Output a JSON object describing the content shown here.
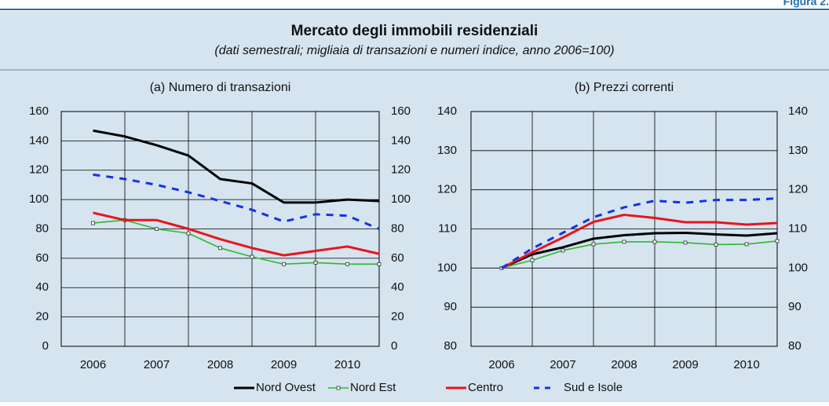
{
  "figure_label": "Figura 2.",
  "title": "Mercato degli immobili residenziali",
  "subtitle": "(dati semestrali; migliaia di transazioni e numeri indice, anno 2006=100)",
  "chart_data": [
    {
      "type": "line",
      "title": "(a) Numero di transazioni",
      "categories": [
        "2006",
        null,
        "2007",
        null,
        "2008",
        null,
        "2009",
        null,
        "2010",
        null
      ],
      "ylim": [
        0,
        160
      ],
      "yticks": [
        0,
        20,
        40,
        60,
        80,
        100,
        120,
        140,
        160
      ],
      "y2lim": [
        0,
        160
      ],
      "y2ticks": [
        0,
        20,
        40,
        60,
        80,
        100,
        120,
        140,
        160
      ],
      "grid": true,
      "series": [
        {
          "name": "Nord Ovest",
          "color": "#000000",
          "values": [
            147,
            143,
            137,
            130,
            114,
            111,
            98,
            98,
            100,
            99
          ]
        },
        {
          "name": "Nord Est",
          "color": "#2db82d",
          "marker": "square",
          "values": [
            84,
            86,
            80,
            77,
            67,
            61,
            56,
            57,
            56,
            56
          ]
        },
        {
          "name": "Centro",
          "color": "#e8141c",
          "values": [
            91,
            86,
            86,
            80,
            73,
            67,
            62,
            65,
            68,
            63
          ]
        },
        {
          "name": "Sud e Isole",
          "color": "#1432e6",
          "dashed": true,
          "values": [
            117,
            114,
            110,
            105,
            99,
            93,
            85,
            90,
            89,
            80
          ]
        }
      ]
    },
    {
      "type": "line",
      "title": "(b) Prezzi correnti",
      "categories": [
        "2006",
        null,
        "2007",
        null,
        "2008",
        null,
        "2009",
        null,
        "2010",
        null
      ],
      "ylim": [
        80,
        140
      ],
      "yticks": [
        80,
        90,
        100,
        110,
        120,
        130,
        140
      ],
      "y2lim": [
        80,
        140
      ],
      "y2ticks": [
        80,
        90,
        100,
        110,
        120,
        130,
        140
      ],
      "grid": true,
      "series": [
        {
          "name": "Nord Ovest",
          "color": "#000000",
          "values": [
            100,
            103.5,
            105.3,
            107.5,
            108.4,
            108.9,
            109,
            108.6,
            108.3,
            108.9
          ]
        },
        {
          "name": "Nord Est",
          "color": "#2db82d",
          "marker": "square",
          "values": [
            100,
            102,
            104.5,
            106.1,
            106.7,
            106.7,
            106.5,
            106,
            106.1,
            106.9
          ]
        },
        {
          "name": "Centro",
          "color": "#e8141c",
          "values": [
            100,
            104,
            107.8,
            111.8,
            113.6,
            112.8,
            111.7,
            111.7,
            111.1,
            111.5
          ]
        },
        {
          "name": "Sud e Isole",
          "color": "#1432e6",
          "dashed": true,
          "values": [
            100,
            105,
            109,
            113,
            115.5,
            117.2,
            116.7,
            117.4,
            117.4,
            117.8
          ]
        }
      ]
    }
  ]
}
